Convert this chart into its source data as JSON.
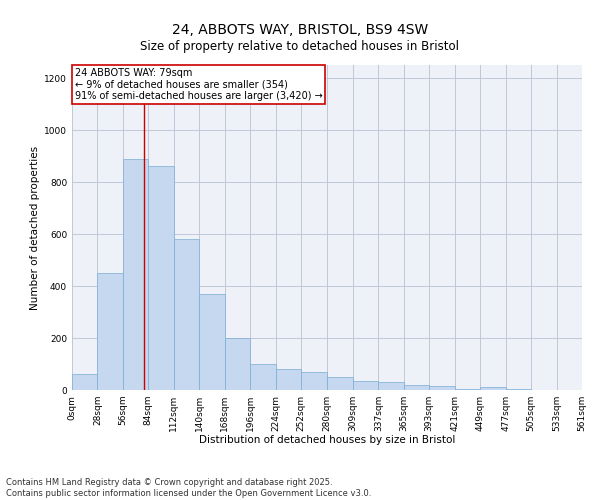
{
  "title_line1": "24, ABBOTS WAY, BRISTOL, BS9 4SW",
  "title_line2": "Size of property relative to detached houses in Bristol",
  "xlabel": "Distribution of detached houses by size in Bristol",
  "ylabel": "Number of detached properties",
  "bar_edges": [
    0,
    28,
    56,
    84,
    112,
    140,
    168,
    196,
    224,
    252,
    280,
    309,
    337,
    365,
    393,
    421,
    449,
    477,
    505,
    533,
    561
  ],
  "bar_values": [
    60,
    450,
    890,
    860,
    580,
    370,
    200,
    100,
    80,
    70,
    50,
    35,
    30,
    20,
    15,
    5,
    12,
    5,
    0,
    0
  ],
  "bar_color": "#c5d8f0",
  "bar_edgecolor": "#7aadd4",
  "grid_color": "#c0c8d8",
  "background_color": "#eef2f8",
  "property_line_x": 79,
  "property_line_color": "#cc0000",
  "annotation_text": "24 ABBOTS WAY: 79sqm\n← 9% of detached houses are smaller (354)\n91% of semi-detached houses are larger (3,420) →",
  "annotation_box_color": "#cc0000",
  "ylim": [
    0,
    1250
  ],
  "yticks": [
    0,
    200,
    400,
    600,
    800,
    1000,
    1200
  ],
  "footer_line1": "Contains HM Land Registry data © Crown copyright and database right 2025.",
  "footer_line2": "Contains public sector information licensed under the Open Government Licence v3.0.",
  "title_fontsize": 10,
  "subtitle_fontsize": 8.5,
  "axis_label_fontsize": 7.5,
  "tick_fontsize": 6.5,
  "footer_fontsize": 6,
  "annotation_fontsize": 7
}
